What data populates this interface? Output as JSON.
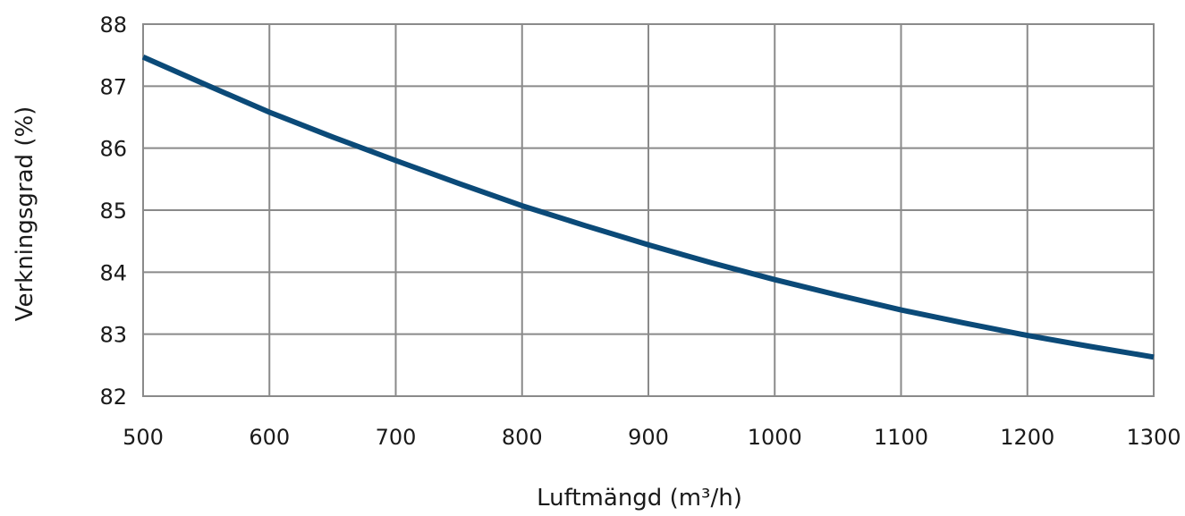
{
  "chart_data": {
    "type": "line",
    "xlabel": "Luftmängd (m³/h)",
    "ylabel": "Verkningsgrad (%)",
    "xlim": [
      500,
      1300
    ],
    "ylim": [
      82,
      88
    ],
    "x_ticks": [
      "500",
      "600",
      "700",
      "800",
      "900",
      "1000",
      "1100",
      "1200",
      "1300"
    ],
    "y_ticks": [
      "82",
      "83",
      "84",
      "85",
      "86",
      "87",
      "88"
    ],
    "grid": true,
    "series": [
      {
        "color": "#0b4a78",
        "x": [
          500,
          550,
          600,
          650,
          700,
          750,
          800,
          850,
          900,
          950,
          1000,
          1050,
          1100,
          1150,
          1200,
          1250,
          1300
        ],
        "y": [
          87.47,
          87.02,
          86.58,
          86.18,
          85.8,
          85.43,
          85.07,
          84.75,
          84.44,
          84.15,
          83.88,
          83.63,
          83.39,
          83.18,
          82.98,
          82.8,
          82.63
        ]
      }
    ]
  }
}
